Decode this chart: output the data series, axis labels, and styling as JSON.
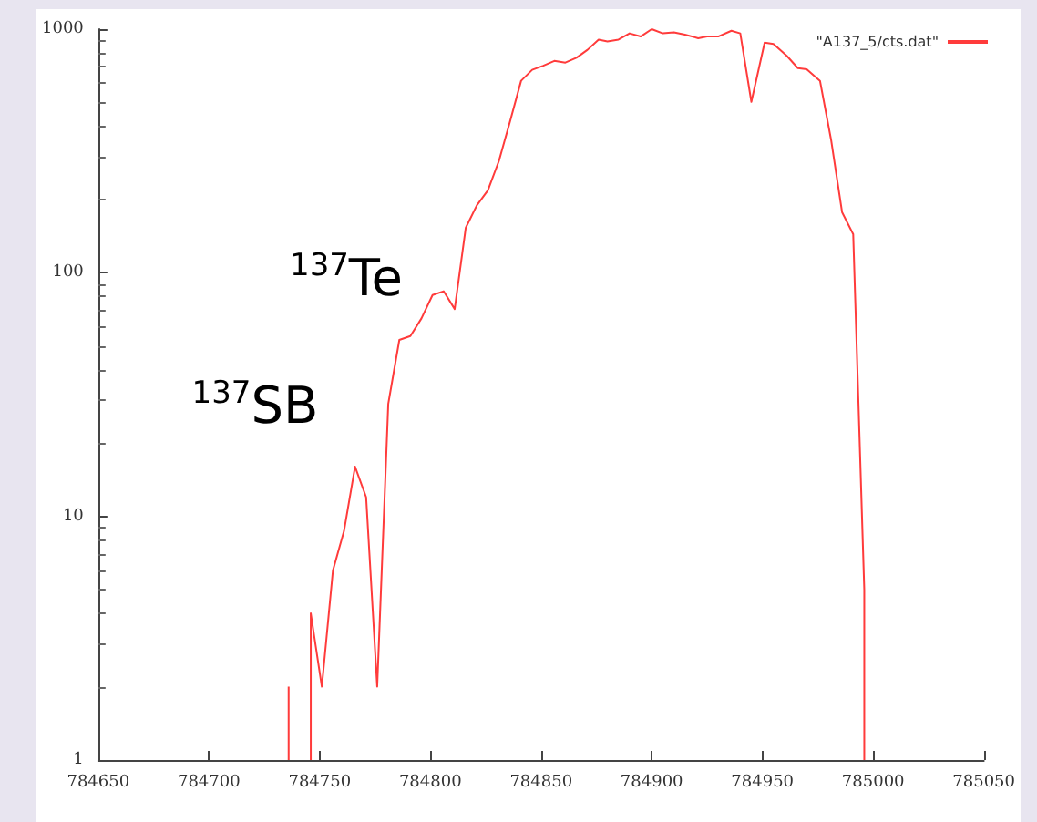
{
  "chart_data": {
    "type": "line",
    "log": "y",
    "xlim": [
      784650,
      785050
    ],
    "ylim": [
      1,
      1000
    ],
    "xticks": [
      784650,
      784700,
      784750,
      784800,
      784850,
      784900,
      784950,
      785000,
      785050
    ],
    "yticks": [
      1,
      10,
      100,
      1000
    ],
    "grid": false,
    "legend": "top right",
    "marker": "none",
    "line_style": "solid",
    "annotations": [
      "$^{137}$Te",
      "$^{137}$SB"
    ],
    "series": [
      {
        "name": "\"A137_5/cts.dat\"",
        "color": "#ff3b3b",
        "x": [
          784736,
          784736,
          784741,
          784746,
          784746,
          784751,
          784756,
          784761,
          784766,
          784771,
          784776,
          784781,
          784786,
          784791,
          784796,
          784801,
          784806,
          784811,
          784816,
          784821,
          784826,
          784831,
          784836,
          784841,
          784846,
          784851,
          784856,
          784861,
          784866,
          784871,
          784876,
          784880,
          784885,
          784890,
          784895,
          784900,
          784905,
          784910,
          784915,
          784921,
          784925,
          784930,
          784936,
          784940,
          784945,
          784951,
          784955,
          784961,
          784966,
          784970,
          784976,
          784981,
          784986,
          784991,
          784996,
          784996
        ],
        "values": [
          1,
          2,
          null,
          1,
          4,
          2,
          6,
          8.7,
          16,
          12,
          2,
          29,
          53,
          55,
          65,
          81,
          84,
          71,
          153,
          189,
          218,
          288,
          418,
          614,
          681,
          708,
          741,
          729,
          763,
          823,
          906,
          891,
          906,
          961,
          933,
          1000,
          961,
          970,
          950,
          918,
          933,
          933,
          985,
          961,
          503,
          881,
          870,
          777,
          692,
          685,
          614,
          352,
          177,
          144,
          5,
          1
        ]
      }
    ]
  }
}
